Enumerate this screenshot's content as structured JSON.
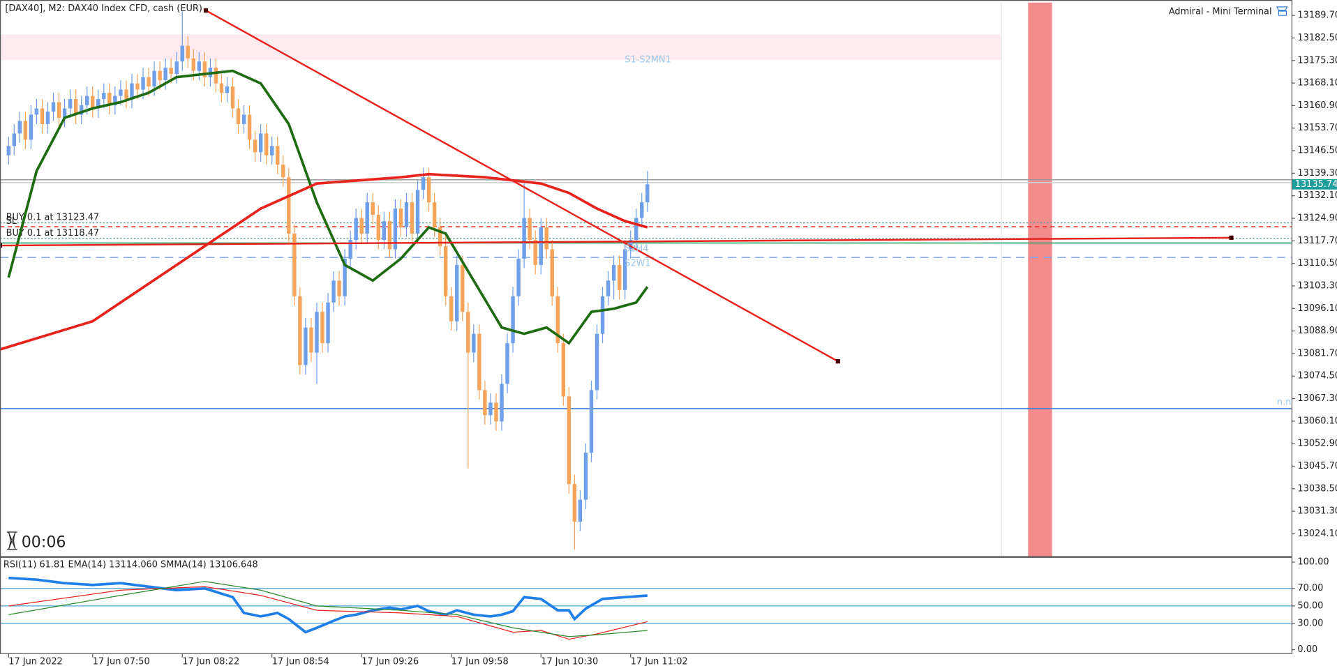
{
  "chart_data": [
    {
      "type": "candlestick",
      "title": "[DAX40], M2:  DAX40 Index CFD, cash (EUR)",
      "terminal": "Admiral - Mini Terminal",
      "timer": "00:06",
      "up_color": "#6f9fe8",
      "down_color": "#f5a45a",
      "open": [
        13145,
        13148,
        13152,
        13156,
        13150,
        13158,
        13160,
        13155,
        13159,
        13162,
        13157,
        13160,
        13163,
        13158,
        13161,
        13164,
        13160,
        13163,
        13165,
        13161,
        13164,
        13166,
        13163,
        13168,
        13166,
        13170,
        13167,
        13172,
        13169,
        13173,
        13171,
        13175,
        13180,
        13176,
        13172,
        13175,
        13170,
        13173,
        13168,
        13165,
        13167,
        13160,
        13155,
        13158,
        13150,
        13146,
        13152,
        13145,
        13148,
        13142,
        13138,
        13120,
        13100,
        13078,
        13090,
        13082,
        13095,
        13085,
        13098,
        13105,
        13100,
        13112,
        13118,
        13125,
        13120,
        13130,
        13126,
        13118,
        13124,
        13115,
        13128,
        13122,
        13130,
        13120,
        13134,
        13138,
        13130,
        13122,
        13116,
        13100,
        13092,
        13110,
        13095,
        13082,
        13088,
        13070,
        13062,
        13066,
        13060,
        13072,
        13085,
        13100,
        13112,
        13125,
        13118,
        13110,
        13122,
        13115,
        13100,
        13085,
        13068,
        13040,
        13028,
        13035,
        13050,
        13070,
        13088,
        13100,
        13105,
        13110,
        13102,
        13115,
        13118,
        13125,
        13130
      ],
      "high": [
        13151,
        13155,
        13159,
        13159,
        13161,
        13163,
        13163,
        13162,
        13165,
        13165,
        13163,
        13166,
        13166,
        13164,
        13167,
        13167,
        13166,
        13168,
        13168,
        13167,
        13169,
        13169,
        13171,
        13171,
        13173,
        13173,
        13175,
        13175,
        13176,
        13176,
        13178,
        13191,
        13183,
        13179,
        13178,
        13178,
        13176,
        13176,
        13171,
        13170,
        13170,
        13163,
        13161,
        13161,
        13153,
        13155,
        13155,
        13151,
        13151,
        13145,
        13141,
        13123,
        13103,
        13093,
        13093,
        13098,
        13098,
        13101,
        13108,
        13108,
        13115,
        13121,
        13128,
        13128,
        13133,
        13133,
        13129,
        13127,
        13127,
        13131,
        13131,
        13133,
        13133,
        13137,
        13141,
        13141,
        13133,
        13125,
        13119,
        13103,
        13113,
        13113,
        13098,
        13091,
        13091,
        13073,
        13069,
        13069,
        13075,
        13088,
        13103,
        13115,
        13136,
        13128,
        13121,
        13125,
        13125,
        13118,
        13103,
        13088,
        13071,
        13043,
        13038,
        13053,
        13073,
        13091,
        13103,
        13108,
        13113,
        13113,
        13118,
        13121,
        13128,
        13133,
        13140
      ],
      "low": [
        13142,
        13145,
        13149,
        13147,
        13147,
        13155,
        13152,
        13152,
        13156,
        13154,
        13154,
        13157,
        13155,
        13155,
        13158,
        13157,
        13157,
        13160,
        13158,
        13158,
        13161,
        13160,
        13160,
        13163,
        13163,
        13164,
        13164,
        13166,
        13166,
        13168,
        13168,
        13172,
        13173,
        13169,
        13169,
        13167,
        13167,
        13165,
        13162,
        13162,
        13157,
        13152,
        13152,
        13147,
        13143,
        13143,
        13142,
        13142,
        13139,
        13135,
        13117,
        13097,
        13075,
        13075,
        13079,
        13072,
        13082,
        13082,
        13095,
        13097,
        13097,
        13109,
        13115,
        13117,
        13117,
        13123,
        13115,
        13115,
        13112,
        13112,
        13119,
        13119,
        13117,
        13117,
        13131,
        13127,
        13119,
        13113,
        13097,
        13089,
        13089,
        13092,
        13045,
        13079,
        13067,
        13059,
        13059,
        13057,
        13057,
        13069,
        13082,
        13097,
        13109,
        13115,
        13107,
        13107,
        13112,
        13097,
        13082,
        13065,
        13037,
        13019,
        13025,
        13032,
        13047,
        13067,
        13085,
        13097,
        13099,
        13099,
        13099,
        13112,
        13115,
        13122,
        13127
      ],
      "close": [
        13148,
        13152,
        13156,
        13150,
        13158,
        13160,
        13155,
        13159,
        13162,
        13157,
        13160,
        13163,
        13158,
        13161,
        13164,
        13160,
        13163,
        13165,
        13161,
        13164,
        13166,
        13163,
        13168,
        13166,
        13170,
        13167,
        13172,
        13169,
        13173,
        13171,
        13175,
        13180,
        13176,
        13172,
        13175,
        13170,
        13173,
        13168,
        13165,
        13167,
        13160,
        13155,
        13158,
        13150,
        13146,
        13152,
        13145,
        13148,
        13142,
        13138,
        13120,
        13100,
        13078,
        13090,
        13082,
        13095,
        13085,
        13098,
        13105,
        13100,
        13112,
        13118,
        13125,
        13120,
        13130,
        13126,
        13118,
        13124,
        13115,
        13128,
        13122,
        13130,
        13120,
        13134,
        13138,
        13130,
        13122,
        13116,
        13100,
        13092,
        13110,
        13095,
        13082,
        13088,
        13070,
        13062,
        13066,
        13060,
        13072,
        13085,
        13100,
        13112,
        13125,
        13118,
        13110,
        13122,
        13115,
        13100,
        13085,
        13068,
        13040,
        13028,
        13035,
        13050,
        13070,
        13088,
        13100,
        13105,
        13110,
        13102,
        13115,
        13118,
        13125,
        13130,
        13135.74
      ],
      "xlim": [
        -1.53,
        228.94
      ],
      "xticks": [
        {
          "value": 0,
          "label": "17 Jun 2022"
        },
        {
          "value": 15,
          "label": "17 Jun 07:50"
        },
        {
          "value": 31,
          "label": "17 Jun 08:22"
        },
        {
          "value": 47,
          "label": "17 Jun 08:54"
        },
        {
          "value": 63,
          "label": "17 Jun 09:26"
        },
        {
          "value": 79,
          "label": "17 Jun 09:58"
        },
        {
          "value": 95,
          "label": "17 Jun 10:30"
        },
        {
          "value": 111,
          "label": "17 Jun 11:02"
        }
      ],
      "ylim": [
        13016.97,
        13193.81
      ],
      "yticks": [
        {
          "value": 13189.7,
          "label": "13189.70"
        },
        {
          "value": 13182.5,
          "label": "13182.50"
        },
        {
          "value": 13175.3,
          "label": "13175.30"
        },
        {
          "value": 13168.1,
          "label": "13168.10"
        },
        {
          "value": 13160.9,
          "label": "13160.90"
        },
        {
          "value": 13153.7,
          "label": "13153.70"
        },
        {
          "value": 13146.5,
          "label": "13146.50"
        },
        {
          "value": 13139.3,
          "label": "13139.30"
        },
        {
          "value": 13132.1,
          "label": "13132.10"
        },
        {
          "value": 13124.9,
          "label": "13124.90"
        },
        {
          "value": 13117.7,
          "label": "13117.70"
        },
        {
          "value": 13110.5,
          "label": "13110.50"
        },
        {
          "value": 13103.3,
          "label": "13103.30"
        },
        {
          "value": 13096.1,
          "label": "13096.10"
        },
        {
          "value": 13088.9,
          "label": "13088.90"
        },
        {
          "value": 13081.7,
          "label": "13081.70"
        },
        {
          "value": 13074.5,
          "label": "13074.50"
        },
        {
          "value": 13067.3,
          "label": "13067.30"
        },
        {
          "value": 13060.1,
          "label": "13060.10"
        },
        {
          "value": 13052.9,
          "label": "13052.90"
        },
        {
          "value": 13045.7,
          "label": "13045.70"
        },
        {
          "value": 13038.5,
          "label": "13038.50"
        },
        {
          "value": 13031.3,
          "label": "13031.30"
        },
        {
          "value": 13024.1,
          "label": "13024.10"
        }
      ],
      "series": [
        {
          "color": "#1e6b12",
          "width": 3,
          "x": [
            0,
            5,
            10,
            15,
            20,
            25,
            30,
            40,
            45,
            50,
            55,
            60,
            65,
            70,
            75,
            78,
            83,
            88,
            92,
            96,
            100,
            104,
            108,
            112,
            114
          ],
          "values": [
            13106,
            13140,
            13157,
            13160,
            13162,
            13165,
            13170,
            13172,
            13168,
            13155,
            13130,
            13110,
            13105,
            13112,
            13122,
            13120,
            13105,
            13090,
            13088,
            13090,
            13085,
            13095,
            13096,
            13098,
            13103
          ]
        },
        {
          "color": "#e8221c",
          "width": 3,
          "x": [
            -1.53,
            15,
            30,
            45,
            55,
            70,
            75,
            85,
            95,
            100,
            105,
            110,
            114
          ],
          "values": [
            13083,
            13092,
            13110,
            13128,
            13136,
            13138,
            13139,
            13138,
            13136,
            13133,
            13128,
            13124,
            13122
          ]
        }
      ],
      "levels": [
        {
          "value": 13137.2,
          "color": "#a0a0a0"
        },
        {
          "value": 13136.3,
          "color": "#cfcfcf"
        },
        {
          "value": 13123.47,
          "color": "#6aa0a0",
          "dash": "2 2",
          "label": "BUY 0.1 at 13123.47"
        },
        {
          "value": 13122.2,
          "color": "#e8221c",
          "dash": "5 4",
          "label": "SL"
        },
        {
          "value": 13118.47,
          "color": "#6aa0a0",
          "dash": "2 2",
          "label": "BUY 0.1 at 13118.47"
        },
        {
          "value": 13117,
          "color": "#1fa060"
        },
        {
          "value": 13112.4,
          "color": "#7da6f0",
          "dash": "10 6"
        },
        {
          "value": 13064.1,
          "color": "#3f7fd8"
        }
      ],
      "trendlines": [
        {
          "color": "#e8221c",
          "x": [
            35.2,
            148
          ],
          "values": [
            13191.3,
            13079.2
          ]
        },
        {
          "color": "#e8221c",
          "x": [
            -1.53,
            218.2
          ],
          "values": [
            13116.2,
            13118.7
          ]
        }
      ],
      "annotations": [
        "S1-S2MN1",
        "S2H4",
        "S2W1",
        "n.n"
      ]
    },
    {
      "type": "line",
      "title": "RSI(11) 61.81 EMA(14) 13114.060 SMMA(14) 13106.648",
      "ylim": [
        0,
        100
      ],
      "yticks": [
        {
          "value": 100,
          "label": "100.00"
        },
        {
          "value": 70,
          "label": "70.00"
        },
        {
          "value": 50,
          "label": "50.00"
        },
        {
          "value": 30,
          "label": "30.00"
        },
        {
          "value": 0,
          "label": "0.00"
        }
      ],
      "levels": [
        70,
        50,
        30
      ],
      "level_color": "#4da3d6",
      "series": [
        {
          "color": "#1e7fe8",
          "width": 3,
          "x": [
            0,
            5,
            10,
            15,
            20,
            25,
            30,
            35,
            40,
            42,
            45,
            48,
            50,
            53,
            55,
            58,
            60,
            62,
            65,
            68,
            70,
            73,
            75,
            78,
            80,
            83,
            86,
            88,
            90,
            92,
            95,
            98,
            100,
            101,
            103,
            106,
            110,
            114
          ],
          "values": [
            82,
            80,
            76,
            74,
            76,
            72,
            68,
            70,
            60,
            42,
            38,
            42,
            35,
            20,
            25,
            33,
            38,
            40,
            45,
            48,
            46,
            50,
            44,
            40,
            45,
            40,
            38,
            40,
            44,
            60,
            58,
            45,
            45,
            35,
            47,
            58,
            60,
            61.81
          ]
        },
        {
          "color": "#e8221c",
          "width": 1,
          "x": [
            0,
            20,
            35,
            45,
            55,
            70,
            80,
            90,
            95,
            100,
            105,
            114
          ],
          "values": [
            50,
            68,
            72,
            62,
            45,
            42,
            38,
            20,
            22,
            12,
            18,
            32
          ]
        },
        {
          "color": "#2a8a2a",
          "width": 1,
          "x": [
            0,
            20,
            35,
            45,
            55,
            70,
            80,
            90,
            100,
            105,
            114
          ],
          "values": [
            40,
            62,
            78,
            68,
            50,
            45,
            40,
            25,
            15,
            17,
            22
          ]
        }
      ]
    }
  ]
}
